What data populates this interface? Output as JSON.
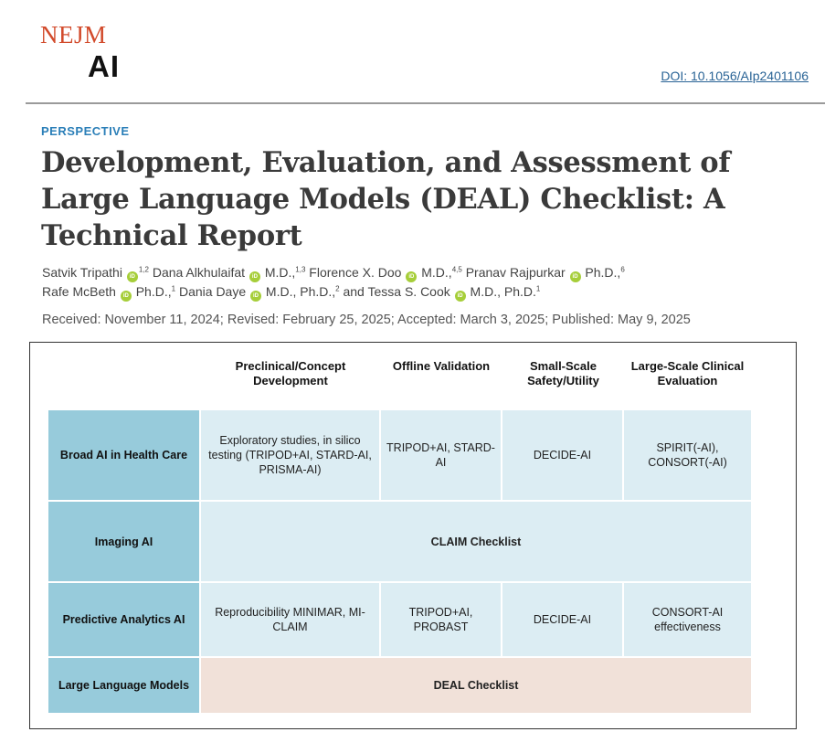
{
  "header": {
    "logo_top": "NEJM",
    "logo_bottom": "AI",
    "doi": "DOI: 10.1056/AIp2401106"
  },
  "article": {
    "kicker": "PERSPECTIVE",
    "title": "Development, Evaluation, and Assessment of Large Language Models (DEAL) Checklist: A Technical Report",
    "authors": [
      {
        "name": "Satvik Tripathi",
        "degree": "",
        "aff": "1,2"
      },
      {
        "name": "Dana Alkhulaifat",
        "degree": "M.D.,",
        "aff": "1,3"
      },
      {
        "name": "Florence X. Doo",
        "degree": "M.D.,",
        "aff": "4,5"
      },
      {
        "name": "Pranav Rajpurkar",
        "degree": "Ph.D.,",
        "aff": "6"
      },
      {
        "name": "Rafe McBeth",
        "degree": "Ph.D.,",
        "aff": "1"
      },
      {
        "name": "Dania Daye",
        "degree": "M.D., Ph.D.,",
        "aff": "2"
      },
      {
        "name": "Tessa S. Cook",
        "degree": "M.D., Ph.D.",
        "aff": "1"
      }
    ],
    "and_text": "and",
    "dates": "Received: November 11, 2024; Revised: February 25, 2025; Accepted: March 3, 2025; Published: May 9, 2025"
  },
  "figure": {
    "columns": [
      "Preclinical/Concept Development",
      "Offline Validation",
      "Small-Scale Safety/Utility",
      "Large-Scale Clinical Evaluation"
    ],
    "rows": [
      {
        "label": "Broad AI in Health Care",
        "cells": [
          "Exploratory studies, in silico testing (TRIPOD+AI, STARD-AI, PRISMA-AI)",
          "TRIPOD+AI, STARD-AI",
          "DECIDE-AI",
          "SPIRIT(-AI), CONSORT(-AI)"
        ]
      },
      {
        "label": "Imaging AI",
        "span": "CLAIM Checklist"
      },
      {
        "label": "Predictive Analytics AI",
        "cells": [
          "Reproducibility MINIMAR, MI-CLAIM",
          "TRIPOD+AI, PROBAST",
          "DECIDE-AI",
          "CONSORT-AI effectiveness"
        ]
      },
      {
        "label": "Large Language Models",
        "span": "DEAL Checklist"
      }
    ]
  }
}
